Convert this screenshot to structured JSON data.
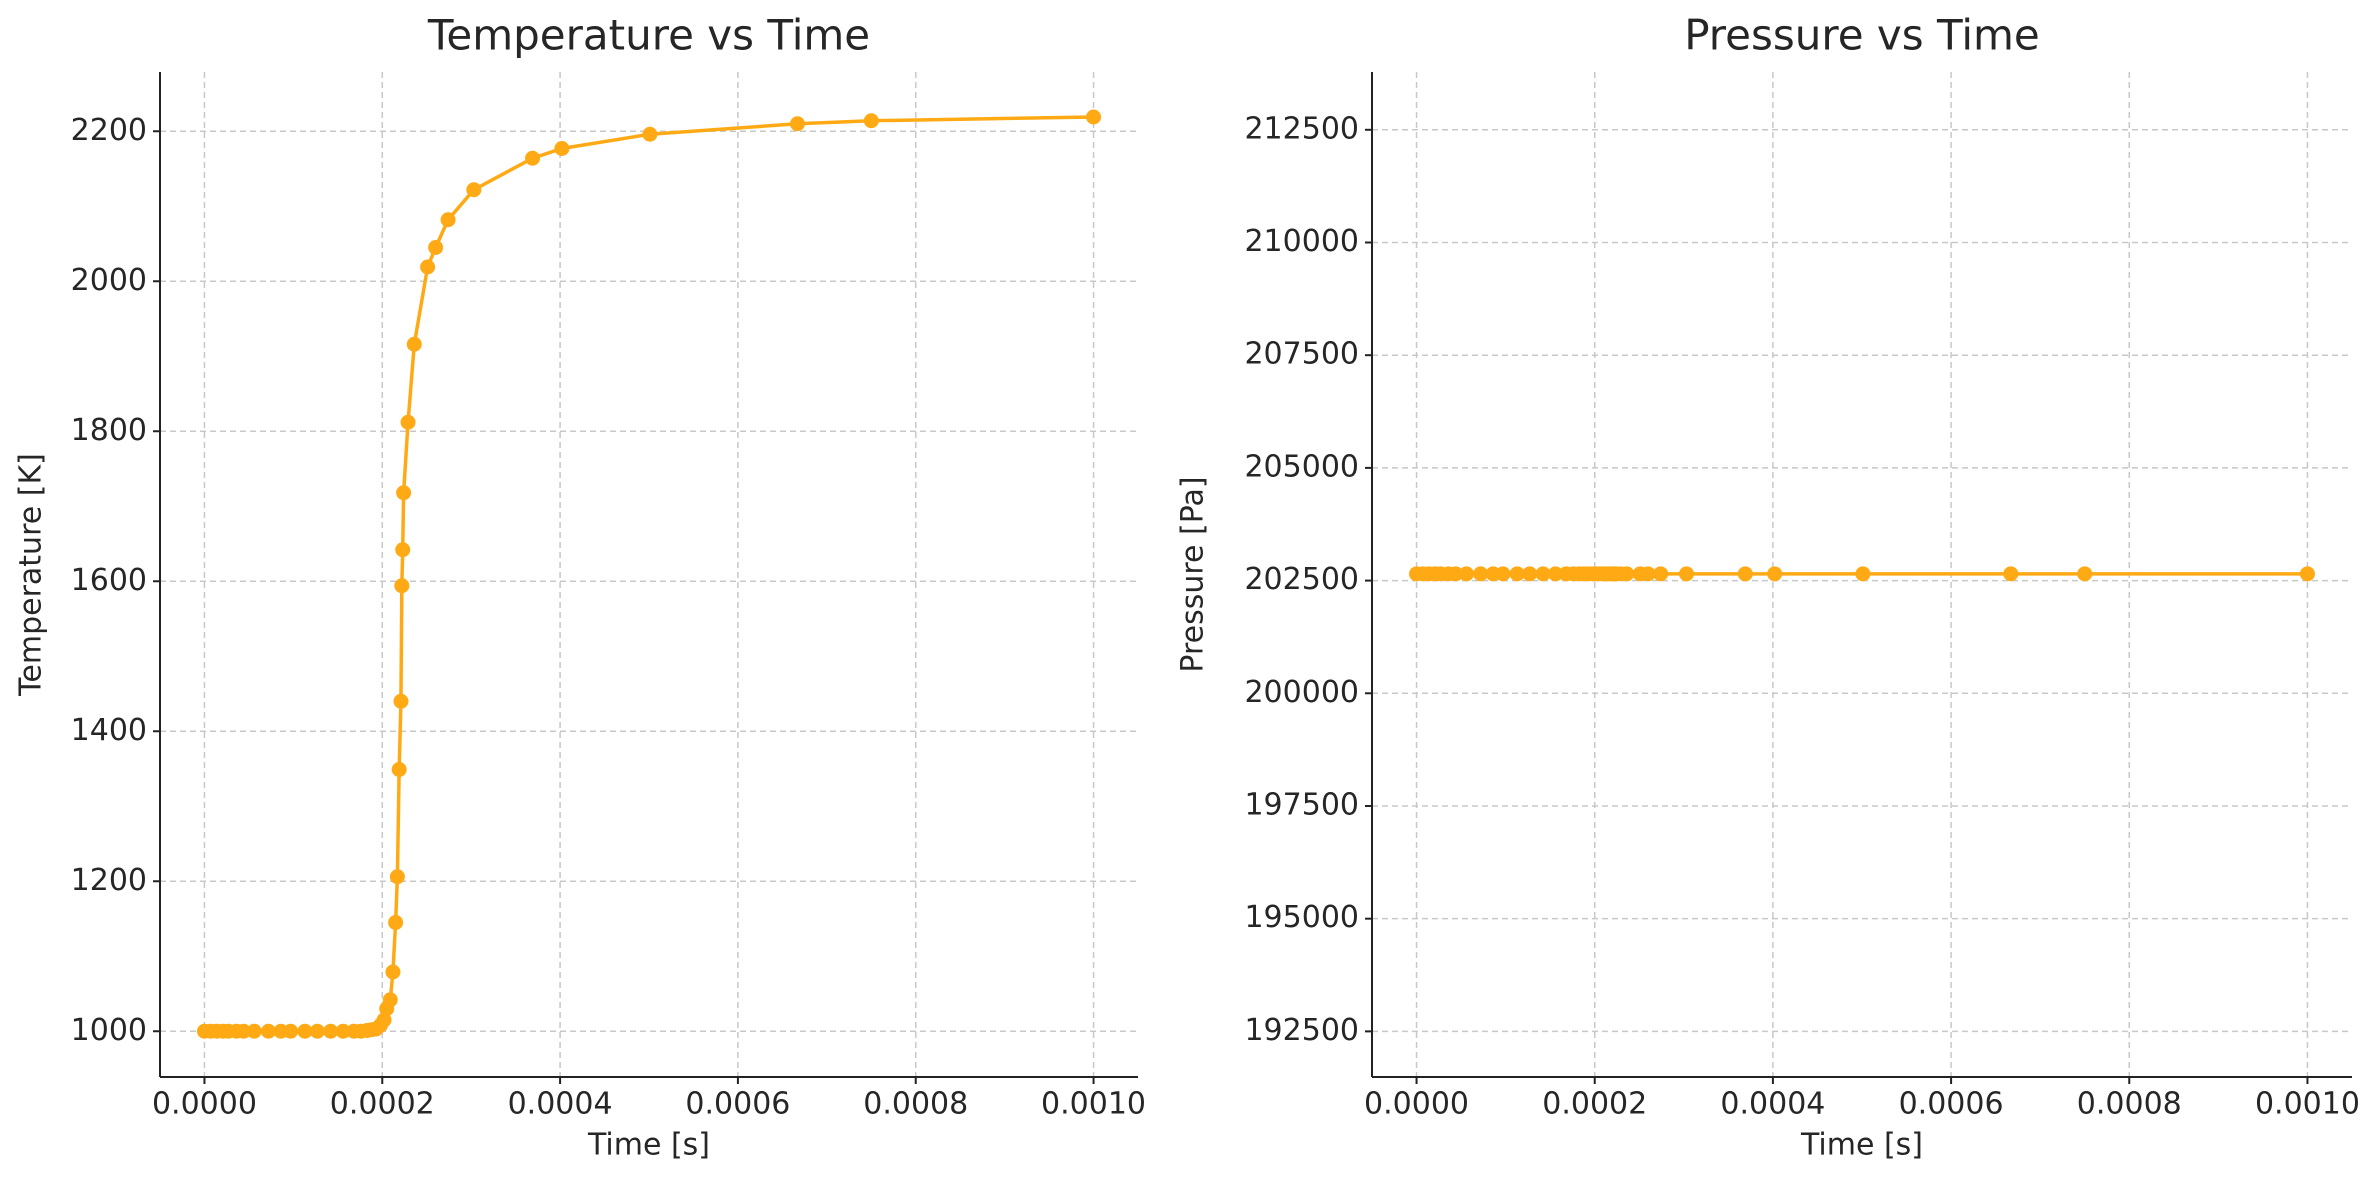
{
  "chart_data": [
    {
      "type": "line",
      "title": "Temperature vs Time",
      "x_label": "Time [s]",
      "y_label": "Temperature [K]",
      "x": [
        0,
        7e-06,
        1.4e-05,
        2.1e-05,
        2.7e-05,
        3.6e-05,
        4.4e-05,
        5.6e-05,
        7.2e-05,
        8.6e-05,
        9.7e-05,
        0.000113,
        0.000127,
        0.000142,
        0.000156,
        0.000168,
        0.000176,
        0.000183,
        0.000188,
        0.000193,
        0.000198,
        0.000202,
        0.000205,
        0.000209,
        0.000212,
        0.000215,
        0.000217,
        0.000219,
        0.000221,
        0.000222,
        0.000223,
        0.000224,
        0.000229,
        0.000236,
        0.000251,
        0.00026,
        0.000274,
        0.000303,
        0.000369,
        0.000402,
        0.000501,
        0.000667,
        0.00075,
        0.001
      ],
      "series": [
        {
          "color": "#ffaa14",
          "values": [
            1000,
            1000,
            1000,
            1000,
            1000,
            1000,
            1000,
            1000,
            1000,
            1000,
            1000,
            1000,
            1000,
            1000,
            1000,
            1000,
            1000,
            1001,
            1002,
            1003,
            1008,
            1015,
            1030,
            1042,
            1079,
            1145,
            1206,
            1349,
            1440,
            1594,
            1642,
            1718,
            1812,
            1916,
            2019,
            2045,
            2082,
            2122,
            2164,
            2177,
            2196,
            2210,
            2214,
            2219
          ]
        }
      ],
      "xlim": [
        -5e-05,
        0.00105
      ],
      "ylim": [
        939,
        2279
      ],
      "xticks": [
        {
          "value": 0,
          "label": "0.0000"
        },
        {
          "value": 0.0002,
          "label": "0.0002"
        },
        {
          "value": 0.0004,
          "label": "0.0004"
        },
        {
          "value": 0.0006,
          "label": "0.0006"
        },
        {
          "value": 0.0008,
          "label": "0.0008"
        },
        {
          "value": 0.001,
          "label": "0.0010"
        }
      ],
      "yticks": [
        1000,
        1200,
        1400,
        1600,
        1800,
        2000,
        2200
      ],
      "grid": true
    },
    {
      "type": "line",
      "title": "Pressure vs Time",
      "x_label": "Time [s]",
      "y_label": "Pressure [Pa]",
      "x": [
        0,
        7e-06,
        1.4e-05,
        2.1e-05,
        2.7e-05,
        3.6e-05,
        4.4e-05,
        5.6e-05,
        7.2e-05,
        8.6e-05,
        9.7e-05,
        0.000113,
        0.000127,
        0.000142,
        0.000156,
        0.000168,
        0.000176,
        0.000183,
        0.000188,
        0.000193,
        0.000198,
        0.000202,
        0.000205,
        0.000209,
        0.000212,
        0.000215,
        0.000217,
        0.000219,
        0.000221,
        0.000222,
        0.000223,
        0.000224,
        0.000229,
        0.000236,
        0.000251,
        0.00026,
        0.000274,
        0.000303,
        0.000369,
        0.000402,
        0.000501,
        0.000667,
        0.00075,
        0.001
      ],
      "series": [
        {
          "color": "#ffaa14",
          "values": [
            202650,
            202650,
            202650,
            202650,
            202650,
            202650,
            202650,
            202650,
            202650,
            202650,
            202650,
            202650,
            202650,
            202650,
            202650,
            202650,
            202650,
            202650,
            202650,
            202650,
            202650,
            202650,
            202650,
            202650,
            202650,
            202650,
            202650,
            202650,
            202650,
            202650,
            202650,
            202650,
            202650,
            202650,
            202650,
            202650,
            202650,
            202650,
            202650,
            202650,
            202650,
            202650,
            202650,
            202650
          ]
        }
      ],
      "xlim": [
        -5e-05,
        0.00105
      ],
      "ylim": [
        191488,
        213782
      ],
      "xticks": [
        {
          "value": 0,
          "label": "0.0000"
        },
        {
          "value": 0.0002,
          "label": "0.0002"
        },
        {
          "value": 0.0004,
          "label": "0.0004"
        },
        {
          "value": 0.0006,
          "label": "0.0006"
        },
        {
          "value": 0.0008,
          "label": "0.0008"
        },
        {
          "value": 0.001,
          "label": "0.0010"
        }
      ],
      "yticks": [
        192500,
        195000,
        197500,
        200000,
        202500,
        205000,
        207500,
        210000,
        212500
      ],
      "grid": true
    }
  ]
}
